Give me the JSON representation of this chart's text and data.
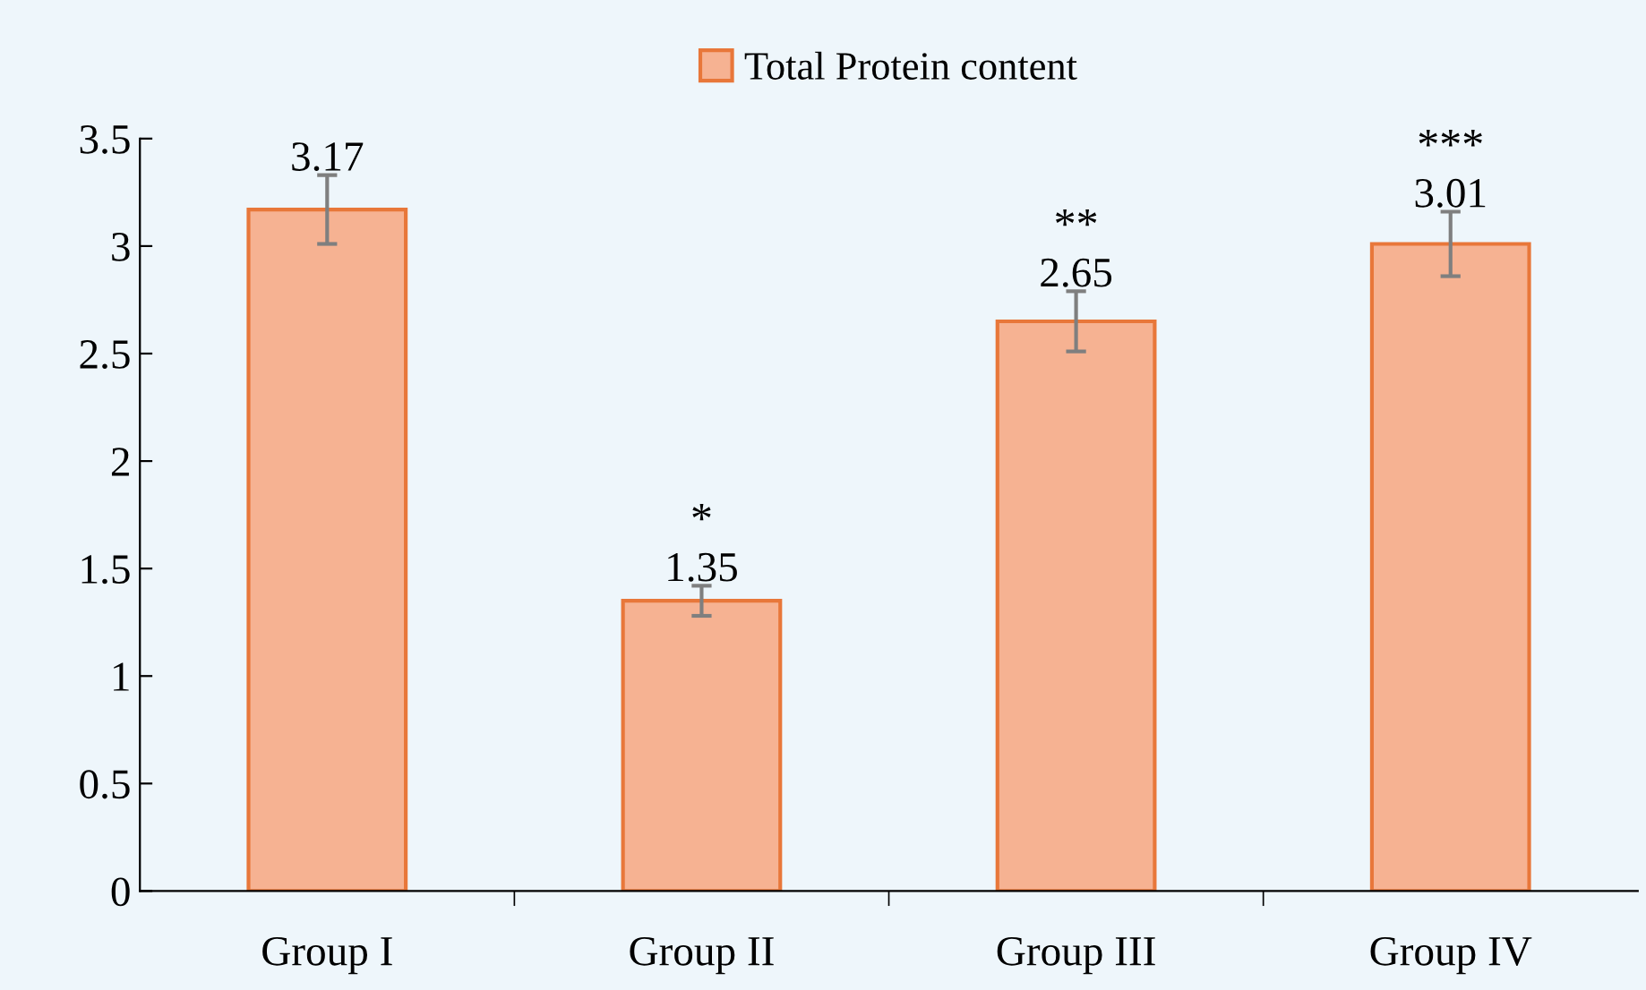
{
  "chart_data": {
    "type": "bar",
    "categories": [
      "Group I",
      "Group II",
      "Group III",
      "Group IV"
    ],
    "series": [
      {
        "name": "Total Protein content",
        "color": "#f6b292",
        "values": [
          3.17,
          1.35,
          2.65,
          3.01
        ],
        "errors": [
          0.16,
          0.07,
          0.14,
          0.15
        ]
      }
    ],
    "ylim": [
      0,
      3.5
    ],
    "yticks": [
      0,
      0.5,
      1,
      1.5,
      2,
      2.5,
      3,
      3.5
    ],
    "data_labels": true,
    "legend": "top",
    "grid": false,
    "annotations": [
      "*",
      "**",
      "***"
    ]
  }
}
